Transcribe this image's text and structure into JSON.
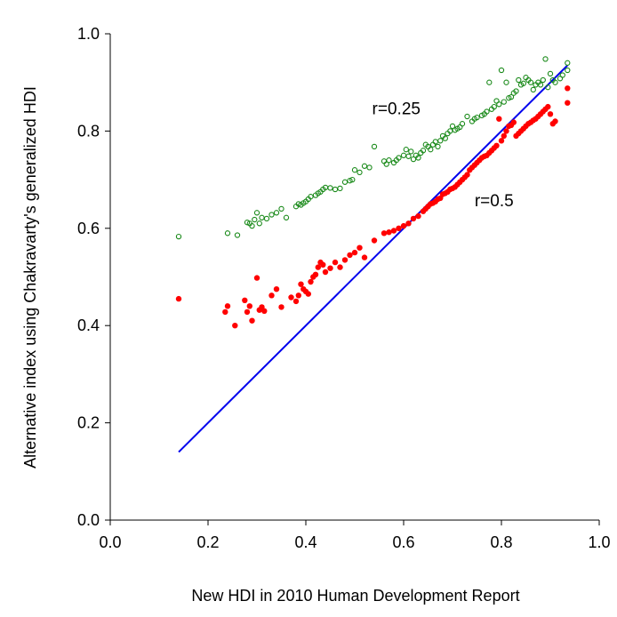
{
  "chart_data": {
    "type": "scatter",
    "xlabel": "New HDI in 2010 Human Development Report",
    "ylabel": "Alternative index using Chakravarty's generalized HDI",
    "xlim": [
      0.0,
      1.0
    ],
    "ylim": [
      0.0,
      1.0
    ],
    "x_ticks": [
      "0.0",
      "0.2",
      "0.4",
      "0.6",
      "0.8",
      "1.0"
    ],
    "y_ticks": [
      "0.0",
      "0.2",
      "0.4",
      "0.6",
      "0.8",
      "1.0"
    ],
    "grid": false,
    "legend": "none",
    "series": [
      {
        "name": "r=0.25",
        "marker": "open-circle",
        "color": "#1a8a1a",
        "points": [
          [
            0.14,
            0.583
          ],
          [
            0.24,
            0.59
          ],
          [
            0.26,
            0.586
          ],
          [
            0.28,
            0.612
          ],
          [
            0.285,
            0.61
          ],
          [
            0.29,
            0.605
          ],
          [
            0.295,
            0.618
          ],
          [
            0.3,
            0.632
          ],
          [
            0.305,
            0.61
          ],
          [
            0.31,
            0.622
          ],
          [
            0.32,
            0.62
          ],
          [
            0.33,
            0.628
          ],
          [
            0.34,
            0.632
          ],
          [
            0.35,
            0.64
          ],
          [
            0.36,
            0.622
          ],
          [
            0.38,
            0.645
          ],
          [
            0.385,
            0.65
          ],
          [
            0.39,
            0.648
          ],
          [
            0.395,
            0.652
          ],
          [
            0.4,
            0.655
          ],
          [
            0.405,
            0.66
          ],
          [
            0.41,
            0.665
          ],
          [
            0.42,
            0.668
          ],
          [
            0.425,
            0.672
          ],
          [
            0.43,
            0.675
          ],
          [
            0.435,
            0.68
          ],
          [
            0.44,
            0.684
          ],
          [
            0.45,
            0.683
          ],
          [
            0.46,
            0.68
          ],
          [
            0.47,
            0.682
          ],
          [
            0.48,
            0.695
          ],
          [
            0.49,
            0.698
          ],
          [
            0.495,
            0.7
          ],
          [
            0.5,
            0.72
          ],
          [
            0.51,
            0.715
          ],
          [
            0.52,
            0.728
          ],
          [
            0.53,
            0.725
          ],
          [
            0.54,
            0.768
          ],
          [
            0.56,
            0.738
          ],
          [
            0.565,
            0.732
          ],
          [
            0.57,
            0.74
          ],
          [
            0.58,
            0.735
          ],
          [
            0.585,
            0.74
          ],
          [
            0.59,
            0.745
          ],
          [
            0.6,
            0.75
          ],
          [
            0.605,
            0.762
          ],
          [
            0.61,
            0.748
          ],
          [
            0.615,
            0.758
          ],
          [
            0.62,
            0.742
          ],
          [
            0.625,
            0.75
          ],
          [
            0.63,
            0.745
          ],
          [
            0.635,
            0.755
          ],
          [
            0.64,
            0.76
          ],
          [
            0.645,
            0.772
          ],
          [
            0.65,
            0.768
          ],
          [
            0.655,
            0.762
          ],
          [
            0.66,
            0.772
          ],
          [
            0.665,
            0.778
          ],
          [
            0.67,
            0.768
          ],
          [
            0.675,
            0.78
          ],
          [
            0.68,
            0.79
          ],
          [
            0.685,
            0.785
          ],
          [
            0.69,
            0.795
          ],
          [
            0.695,
            0.8
          ],
          [
            0.7,
            0.81
          ],
          [
            0.705,
            0.802
          ],
          [
            0.71,
            0.805
          ],
          [
            0.715,
            0.808
          ],
          [
            0.72,
            0.815
          ],
          [
            0.73,
            0.83
          ],
          [
            0.74,
            0.82
          ],
          [
            0.745,
            0.825
          ],
          [
            0.75,
            0.828
          ],
          [
            0.76,
            0.832
          ],
          [
            0.765,
            0.835
          ],
          [
            0.77,
            0.84
          ],
          [
            0.775,
            0.9
          ],
          [
            0.78,
            0.845
          ],
          [
            0.785,
            0.85
          ],
          [
            0.79,
            0.862
          ],
          [
            0.795,
            0.855
          ],
          [
            0.8,
            0.925
          ],
          [
            0.805,
            0.86
          ],
          [
            0.81,
            0.9
          ],
          [
            0.815,
            0.868
          ],
          [
            0.82,
            0.87
          ],
          [
            0.825,
            0.878
          ],
          [
            0.83,
            0.882
          ],
          [
            0.835,
            0.905
          ],
          [
            0.84,
            0.895
          ],
          [
            0.845,
            0.898
          ],
          [
            0.85,
            0.91
          ],
          [
            0.855,
            0.905
          ],
          [
            0.86,
            0.9
          ],
          [
            0.865,
            0.885
          ],
          [
            0.87,
            0.895
          ],
          [
            0.875,
            0.9
          ],
          [
            0.88,
            0.895
          ],
          [
            0.885,
            0.905
          ],
          [
            0.89,
            0.948
          ],
          [
            0.895,
            0.89
          ],
          [
            0.9,
            0.918
          ],
          [
            0.905,
            0.905
          ],
          [
            0.91,
            0.9
          ],
          [
            0.92,
            0.908
          ],
          [
            0.925,
            0.915
          ],
          [
            0.935,
            0.94
          ],
          [
            0.935,
            0.925
          ]
        ]
      },
      {
        "name": "r=0.5",
        "marker": "filled-circle",
        "color": "#ff0000",
        "points": [
          [
            0.14,
            0.455
          ],
          [
            0.235,
            0.428
          ],
          [
            0.24,
            0.44
          ],
          [
            0.255,
            0.4
          ],
          [
            0.275,
            0.452
          ],
          [
            0.28,
            0.428
          ],
          [
            0.285,
            0.44
          ],
          [
            0.29,
            0.41
          ],
          [
            0.3,
            0.498
          ],
          [
            0.305,
            0.432
          ],
          [
            0.31,
            0.438
          ],
          [
            0.315,
            0.43
          ],
          [
            0.33,
            0.462
          ],
          [
            0.34,
            0.475
          ],
          [
            0.35,
            0.438
          ],
          [
            0.37,
            0.458
          ],
          [
            0.38,
            0.45
          ],
          [
            0.385,
            0.462
          ],
          [
            0.39,
            0.485
          ],
          [
            0.395,
            0.475
          ],
          [
            0.4,
            0.47
          ],
          [
            0.405,
            0.465
          ],
          [
            0.41,
            0.49
          ],
          [
            0.415,
            0.5
          ],
          [
            0.42,
            0.505
          ],
          [
            0.425,
            0.52
          ],
          [
            0.43,
            0.53
          ],
          [
            0.435,
            0.525
          ],
          [
            0.44,
            0.51
          ],
          [
            0.45,
            0.518
          ],
          [
            0.46,
            0.53
          ],
          [
            0.47,
            0.52
          ],
          [
            0.48,
            0.535
          ],
          [
            0.49,
            0.545
          ],
          [
            0.5,
            0.55
          ],
          [
            0.51,
            0.56
          ],
          [
            0.52,
            0.54
          ],
          [
            0.54,
            0.575
          ],
          [
            0.56,
            0.59
          ],
          [
            0.57,
            0.592
          ],
          [
            0.58,
            0.595
          ],
          [
            0.59,
            0.6
          ],
          [
            0.6,
            0.605
          ],
          [
            0.61,
            0.61
          ],
          [
            0.62,
            0.62
          ],
          [
            0.63,
            0.625
          ],
          [
            0.64,
            0.635
          ],
          [
            0.645,
            0.64
          ],
          [
            0.65,
            0.645
          ],
          [
            0.655,
            0.65
          ],
          [
            0.66,
            0.652
          ],
          [
            0.665,
            0.655
          ],
          [
            0.67,
            0.66
          ],
          [
            0.675,
            0.662
          ],
          [
            0.68,
            0.67
          ],
          [
            0.685,
            0.672
          ],
          [
            0.69,
            0.675
          ],
          [
            0.695,
            0.68
          ],
          [
            0.7,
            0.682
          ],
          [
            0.705,
            0.685
          ],
          [
            0.71,
            0.69
          ],
          [
            0.715,
            0.695
          ],
          [
            0.72,
            0.7
          ],
          [
            0.725,
            0.705
          ],
          [
            0.73,
            0.71
          ],
          [
            0.735,
            0.72
          ],
          [
            0.74,
            0.725
          ],
          [
            0.745,
            0.73
          ],
          [
            0.75,
            0.735
          ],
          [
            0.755,
            0.74
          ],
          [
            0.76,
            0.745
          ],
          [
            0.765,
            0.748
          ],
          [
            0.77,
            0.75
          ],
          [
            0.775,
            0.755
          ],
          [
            0.78,
            0.76
          ],
          [
            0.785,
            0.765
          ],
          [
            0.79,
            0.77
          ],
          [
            0.795,
            0.825
          ],
          [
            0.8,
            0.78
          ],
          [
            0.805,
            0.79
          ],
          [
            0.81,
            0.8
          ],
          [
            0.815,
            0.81
          ],
          [
            0.82,
            0.812
          ],
          [
            0.825,
            0.818
          ],
          [
            0.83,
            0.79
          ],
          [
            0.835,
            0.795
          ],
          [
            0.84,
            0.8
          ],
          [
            0.845,
            0.805
          ],
          [
            0.85,
            0.81
          ],
          [
            0.855,
            0.815
          ],
          [
            0.86,
            0.818
          ],
          [
            0.865,
            0.822
          ],
          [
            0.87,
            0.825
          ],
          [
            0.875,
            0.83
          ],
          [
            0.88,
            0.835
          ],
          [
            0.885,
            0.84
          ],
          [
            0.89,
            0.845
          ],
          [
            0.895,
            0.85
          ],
          [
            0.9,
            0.835
          ],
          [
            0.905,
            0.815
          ],
          [
            0.91,
            0.82
          ],
          [
            0.935,
            0.888
          ],
          [
            0.935,
            0.858
          ]
        ]
      }
    ],
    "line": {
      "color": "#0000ee",
      "points": [
        [
          0.14,
          0.14
        ],
        [
          0.935,
          0.935
        ]
      ]
    },
    "annotations": [
      {
        "text": "r=0.25",
        "x": 0.585,
        "y": 0.835
      },
      {
        "text": "r=0.5",
        "x": 0.785,
        "y": 0.645
      }
    ]
  }
}
